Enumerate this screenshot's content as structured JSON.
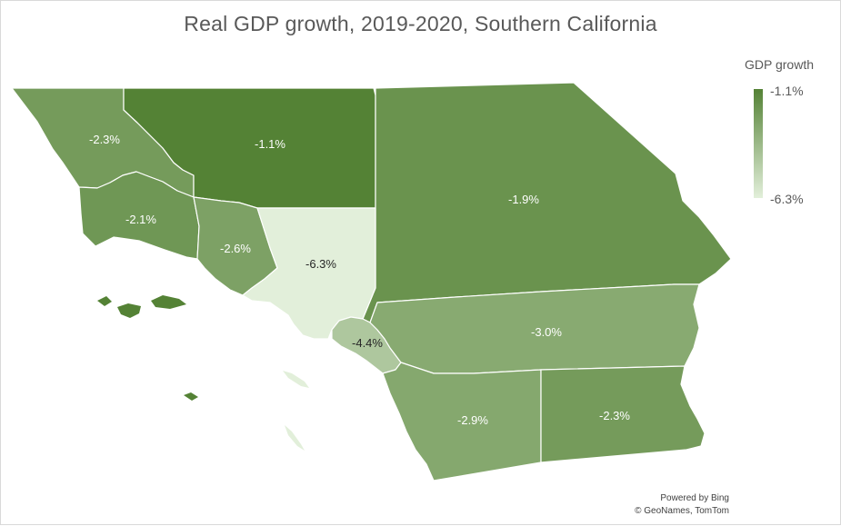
{
  "title": "Real GDP growth, 2019-2020, Southern California",
  "legend": {
    "title": "GDP growth",
    "max_label": "-1.1%",
    "min_label": "-6.3%",
    "max_value": -1.1,
    "min_value": -6.3,
    "max_color": "#548235",
    "min_color": "#e2efda"
  },
  "regions": [
    {
      "value": -2.3,
      "label": "-2.3%"
    },
    {
      "value": -1.1,
      "label": "-1.1%"
    },
    {
      "value": -1.9,
      "label": "-1.9%"
    },
    {
      "value": -2.1,
      "label": "-2.1%"
    },
    {
      "value": -2.6,
      "label": "-2.6%"
    },
    {
      "value": -6.3,
      "label": "-6.3%"
    },
    {
      "value": -4.4,
      "label": "-4.4%"
    },
    {
      "value": -3.0,
      "label": "-3.0%"
    },
    {
      "value": -2.9,
      "label": "-2.9%"
    },
    {
      "value": -2.3,
      "label": "-2.3%"
    }
  ],
  "attribution": {
    "line1": "Powered by Bing",
    "line2": "© GeoNames, TomTom"
  }
}
